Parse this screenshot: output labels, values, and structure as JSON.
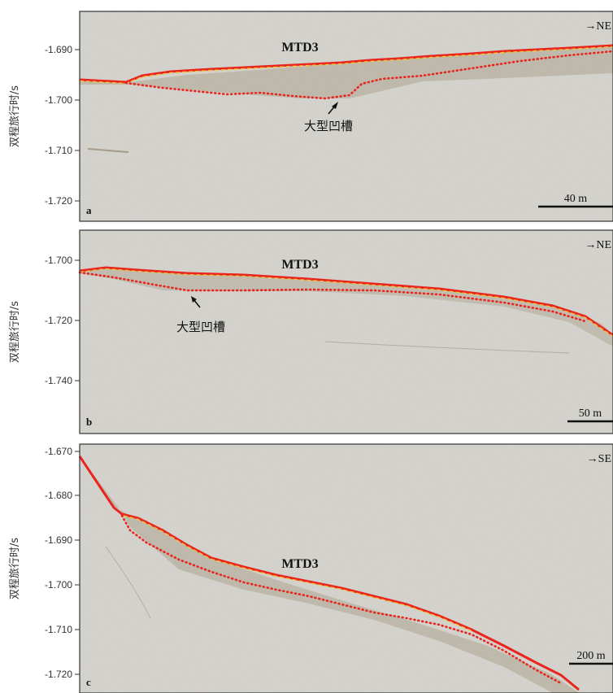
{
  "figure": {
    "y_axis_label": "双程旅行时/s",
    "horizon_color": "#e8251f",
    "surface_color": "#f2c230",
    "background_color": "#d4d2cc"
  },
  "panels": [
    {
      "id": "a",
      "label": "a",
      "title": "MTD3",
      "direction": "→NE",
      "scale_bar": "40 m",
      "annotation": "大型凹槽",
      "y_ticks": [
        "-1.690",
        "-1.700",
        "-1.710",
        "-1.720"
      ]
    },
    {
      "id": "b",
      "label": "b",
      "title": "MTD3",
      "direction": "→NE",
      "scale_bar": "50 m",
      "annotation": "大型凹槽",
      "y_ticks": [
        "-1.700",
        "-1.720",
        "-1.740"
      ]
    },
    {
      "id": "c",
      "label": "c",
      "title": "MTD3",
      "direction": "→SE",
      "scale_bar": "200 m",
      "annotation": "",
      "y_ticks": [
        "-1.670",
        "-1.680",
        "-1.690",
        "-1.700",
        "-1.710",
        "-1.720"
      ]
    }
  ]
}
